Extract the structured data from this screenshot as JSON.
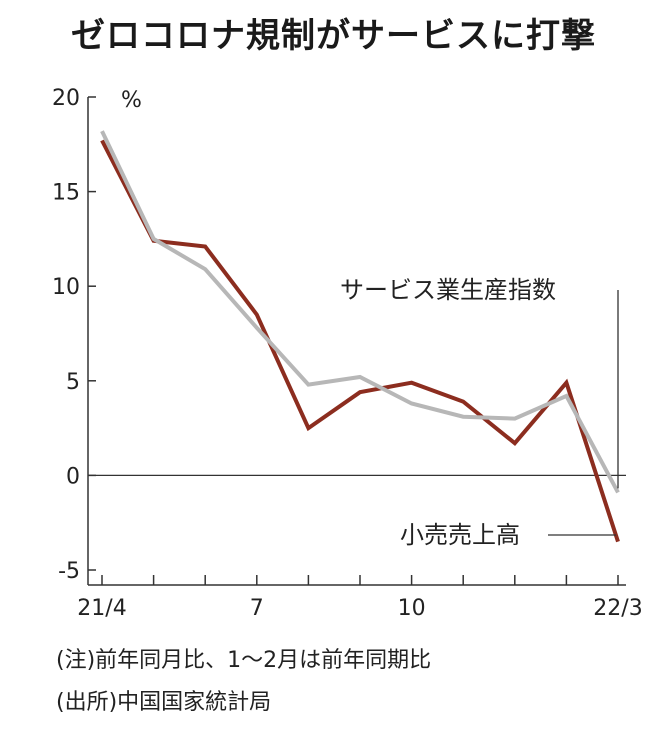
{
  "title": "ゼロコロナ規制がサービスに打撃",
  "notes": {
    "note1": "(注)前年同月比、1〜2月は前年同期比",
    "note2": "(出所)中国国家統計局"
  },
  "chart_data": {
    "type": "line",
    "title": "ゼロコロナ規制がサービスに打撃",
    "ylabel": "%",
    "ylim": [
      -5,
      20
    ],
    "yticks": [
      20,
      15,
      10,
      5,
      0,
      -5
    ],
    "ytick_labels": [
      "20",
      "15",
      "10",
      "5",
      "0",
      "-5"
    ],
    "x": [
      "21/4",
      "21/5",
      "21/6",
      "21/7",
      "21/8",
      "21/9",
      "21/10",
      "21/11",
      "21/12",
      "22/1-2",
      "22/3"
    ],
    "xtick_labels": [
      {
        "index": 0,
        "label": "21/4"
      },
      {
        "index": 3,
        "label": "7"
      },
      {
        "index": 6,
        "label": "10"
      },
      {
        "index": 10,
        "label": "22/3"
      }
    ],
    "grid": false,
    "series": [
      {
        "name": "サービス業生産指数",
        "color": "#b7b7b7",
        "values": [
          18.2,
          12.5,
          10.9,
          7.8,
          4.8,
          5.2,
          3.8,
          3.1,
          3.0,
          4.2,
          -0.9
        ]
      },
      {
        "name": "小売売上高",
        "color": "#8c2d1f",
        "values": [
          17.7,
          12.4,
          12.1,
          8.5,
          2.5,
          4.4,
          4.9,
          3.9,
          1.7,
          4.9,
          -3.5
        ]
      }
    ]
  }
}
